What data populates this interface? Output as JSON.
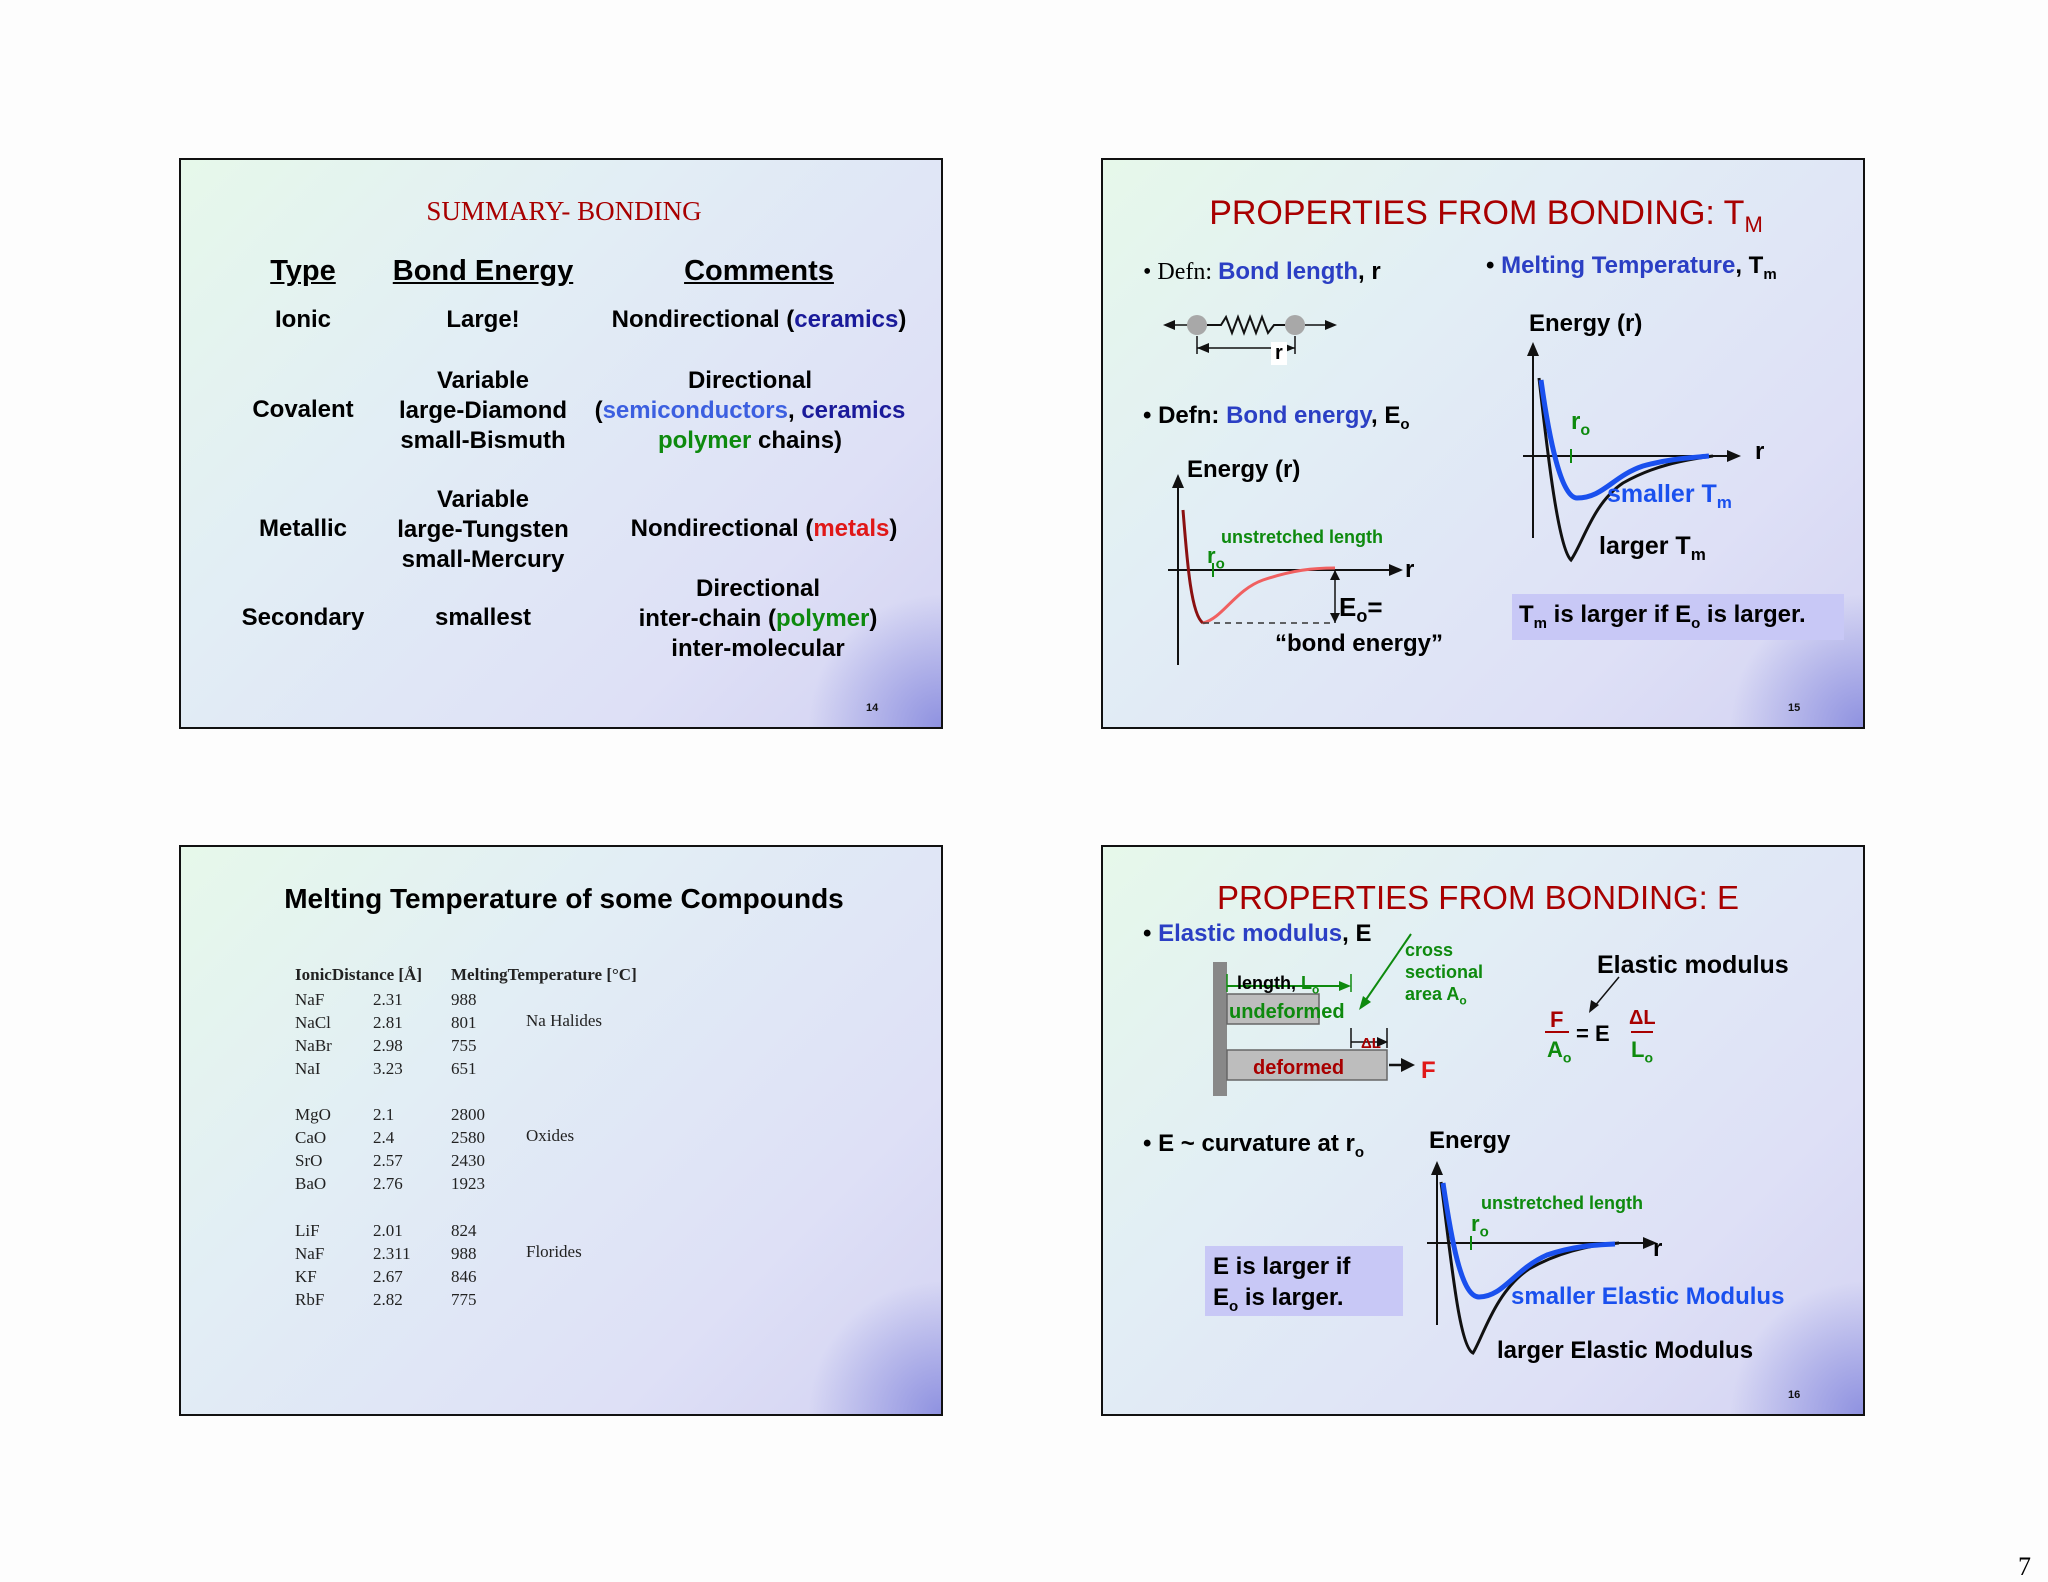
{
  "page_number": "7",
  "slide14": {
    "title": "SUMMARY-  BONDING",
    "headers": {
      "type": "Type",
      "energy": "Bond Energy",
      "comments": "Comments"
    },
    "ionic": {
      "type": "Ionic",
      "energy": "Large!",
      "c1": "Nondirectional (",
      "c2": "ceramics",
      "c3": ")"
    },
    "covalent": {
      "type": "Covalent",
      "e1": "Variable",
      "e2": "large-Diamond",
      "e3": "small-Bismuth",
      "c_line1": "Directional",
      "c_a": "(",
      "c_b": "semiconductors",
      "c_c": ", ",
      "c_d": "ceramics",
      "c_e": "polymer",
      "c_f": " chains)"
    },
    "metallic": {
      "type": "Metallic",
      "e1": "Variable",
      "e2": "large-Tungsten",
      "e3": "small-Mercury",
      "c1": "Nondirectional (",
      "c2": "metals",
      "c3": ")"
    },
    "secondary": {
      "type": "Secondary",
      "energy": "smallest",
      "c_line1": "Directional",
      "c_a": "inter-chain (",
      "c_b": "polymer",
      "c_c": ")",
      "c_line3": "inter-molecular"
    },
    "number": "14"
  },
  "slide15": {
    "title": "PROPERTIES FROM BONDING: T",
    "title_sub": "M",
    "defn1_prefix": "Defn: ",
    "defn1_term": "Bond length",
    "defn1_suffix": ", r",
    "spring_r": "r",
    "defn2_prefix": "Defn: ",
    "defn2_term": "Bond energy",
    "defn2_suffix": ", E",
    "defn2_sub": "o",
    "energy_label": "Energy (r)",
    "unstretched": "unstretched length",
    "ro": "r",
    "ro_sub": "o",
    "axis_r": "r",
    "eo": "E",
    "eo_sub": "o",
    "eo_eq": "=",
    "bond_energy_q": "“bond energy”",
    "melting_term": "Melting Temperature",
    "melting_suffix": ", T",
    "melting_sub": "m",
    "energy_label2": "Energy (r)",
    "ro2": "r",
    "ro2_sub": "o",
    "axis_r2": "r",
    "smaller": "smaller T",
    "smaller_sub": "m",
    "larger": "larger T",
    "larger_sub": "m",
    "box_a": "T",
    "box_a_sub": "m",
    "box_b": " is larger if E",
    "box_b_sub": "o",
    "box_c": " is larger.",
    "number": "15"
  },
  "slide13": {
    "title": "Melting Temperature of some Compounds",
    "col_headers": [
      "IonicDistance [Å]",
      "MeltingTemperature [°C]"
    ],
    "groups": [
      {
        "label": "Na Halides",
        "rows": [
          [
            "NaF",
            "2.31",
            "988"
          ],
          [
            "NaCl",
            "2.81",
            "801"
          ],
          [
            "NaBr",
            "2.98",
            "755"
          ],
          [
            "NaI",
            "3.23",
            "651"
          ]
        ]
      },
      {
        "label": "Oxides",
        "rows": [
          [
            "MgO",
            "2.1",
            "2800"
          ],
          [
            "CaO",
            "2.4",
            "2580"
          ],
          [
            "SrO",
            "2.57",
            "2430"
          ],
          [
            "BaO",
            "2.76",
            "1923"
          ]
        ]
      },
      {
        "label": "Florides",
        "rows": [
          [
            "LiF",
            "2.01",
            "824"
          ],
          [
            "NaF",
            "2.311",
            "988"
          ],
          [
            "KF",
            "2.67",
            "846"
          ],
          [
            "RbF",
            "2.82",
            "775"
          ]
        ]
      }
    ]
  },
  "slide16": {
    "title": "PROPERTIES FROM BONDING:  E",
    "bullet1_term": "Elastic modulus",
    "bullet1_suffix": ", E",
    "length_label": "length, ",
    "lo": "L",
    "lo_sub": "o",
    "cross1": "cross",
    "cross2": "sectional",
    "cross3": "area A",
    "cross3_sub": "o",
    "undeformed": "undeformed",
    "deformed": "deformed",
    "delta_l": "ΔL",
    "force": "F",
    "elastic_label": "Elastic modulus",
    "eq_F": "F",
    "eq_Ao": "A",
    "eq_Ao_sub": "o",
    "eq_mid": "= E",
    "eq_dL": "ΔL",
    "eq_Lo": "L",
    "eq_Lo_sub": "o",
    "bullet2": "E ~ curvature at r",
    "bullet2_sub": "o",
    "energy_label": "Energy",
    "unstretched": "unstretched length",
    "ro": "r",
    "ro_sub": "o",
    "axis_r": "r",
    "box1": "E is larger if",
    "box2a": "E",
    "box2_sub": "o",
    "box2b": " is larger.",
    "smaller": "smaller Elastic Modulus",
    "larger": "larger Elastic Modulus",
    "number": "16"
  },
  "colors": {
    "title_red": "#a80000",
    "term_blue": "#2b3fc4",
    "green": "#0e8a0e",
    "box": "#c8c8f6"
  }
}
